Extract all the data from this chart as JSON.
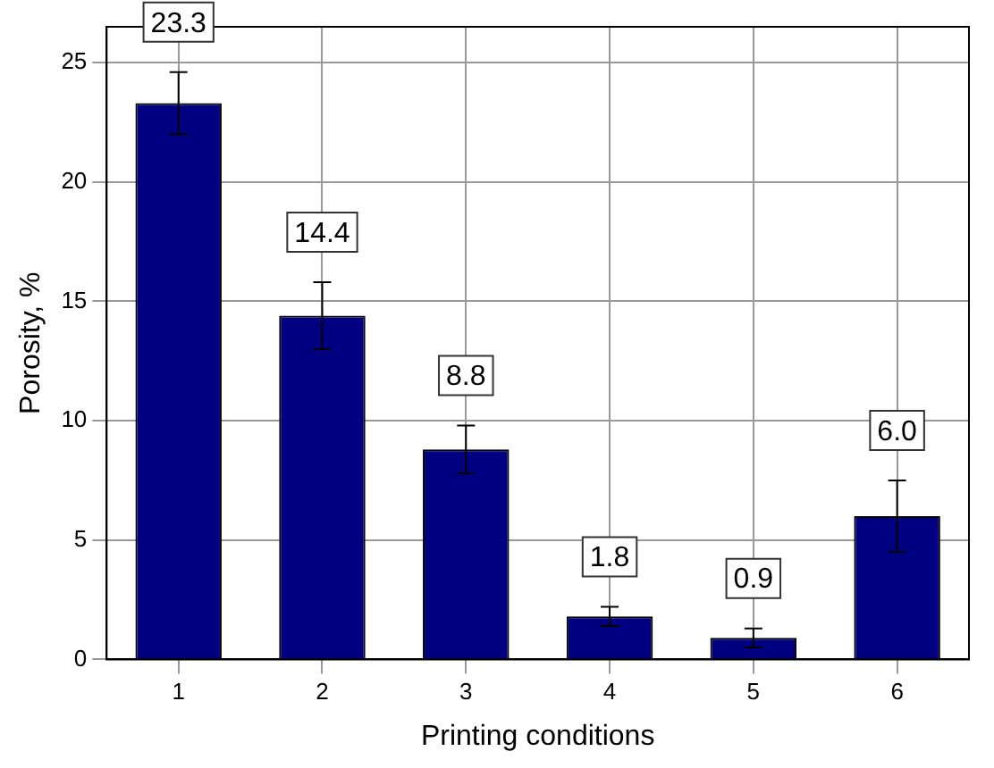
{
  "chart_data": {
    "type": "bar",
    "xlabel": "Printing conditions",
    "ylabel": "Porosity, %",
    "categories": [
      "1",
      "2",
      "3",
      "4",
      "5",
      "6"
    ],
    "values": [
      23.3,
      14.4,
      8.8,
      1.8,
      0.9,
      6.0
    ],
    "value_labels": [
      "23.3",
      "14.4",
      "8.8",
      "1.8",
      "0.9",
      "6.0"
    ],
    "errors": [
      1.3,
      1.4,
      1.0,
      0.4,
      0.4,
      1.5
    ],
    "color": "#000080",
    "ylim": [
      0,
      26.5
    ],
    "yticks": [
      0,
      5,
      10,
      15,
      20,
      25
    ],
    "grid": true,
    "legend": false
  }
}
